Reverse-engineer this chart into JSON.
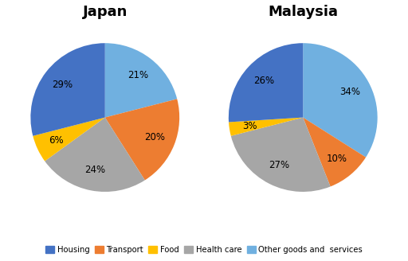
{
  "japan_values": [
    21,
    20,
    24,
    6,
    29
  ],
  "malaysia_values": [
    34,
    10,
    27,
    3,
    26
  ],
  "japan_pct_labels": [
    "21%",
    "20%",
    "24%",
    "6%",
    "29%"
  ],
  "malaysia_pct_labels": [
    "34%",
    "10%",
    "27%",
    "3%",
    "26%"
  ],
  "slice_order": [
    "Other goods and  services",
    "Transport",
    "Health care",
    "Food",
    "Housing"
  ],
  "colors_ordered": [
    "#70b0e0",
    "#ed7d31",
    "#a6a6a6",
    "#ffc000",
    "#4472c4"
  ],
  "legend_labels": [
    "Housing",
    "Transport",
    "Food",
    "Health care",
    "Other goods and  services"
  ],
  "legend_colors": [
    "#4472c4",
    "#ed7d31",
    "#ffc000",
    "#a6a6a6",
    "#70b0e0"
  ],
  "title_japan": "Japan",
  "title_malaysia": "Malaysia",
  "background_color": "#ffffff",
  "japan_pctdist": 0.72,
  "malaysia_pctdist": 0.72,
  "startangle": 90
}
